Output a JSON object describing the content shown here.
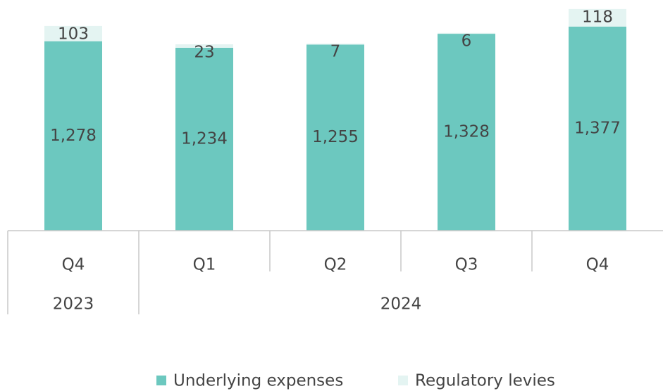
{
  "chart_data": {
    "type": "stacked_bar",
    "categories": [
      "Q4",
      "Q1",
      "Q2",
      "Q3",
      "Q4"
    ],
    "groups": [
      "2023",
      "2024",
      null,
      null,
      null
    ],
    "series": [
      {
        "name": "Underlying expenses",
        "color": "#6cc8bf",
        "values": [
          1278,
          1234,
          1255,
          1328,
          1377
        ],
        "value_labels": [
          "1,278",
          "1,234",
          "1,255",
          "1,328",
          "1,377"
        ]
      },
      {
        "name": "Regulatory levies",
        "color": "#e4f4f2",
        "values": [
          103,
          23,
          7,
          6,
          118
        ]
      }
    ],
    "ylim": [
      0,
      1556
    ]
  }
}
